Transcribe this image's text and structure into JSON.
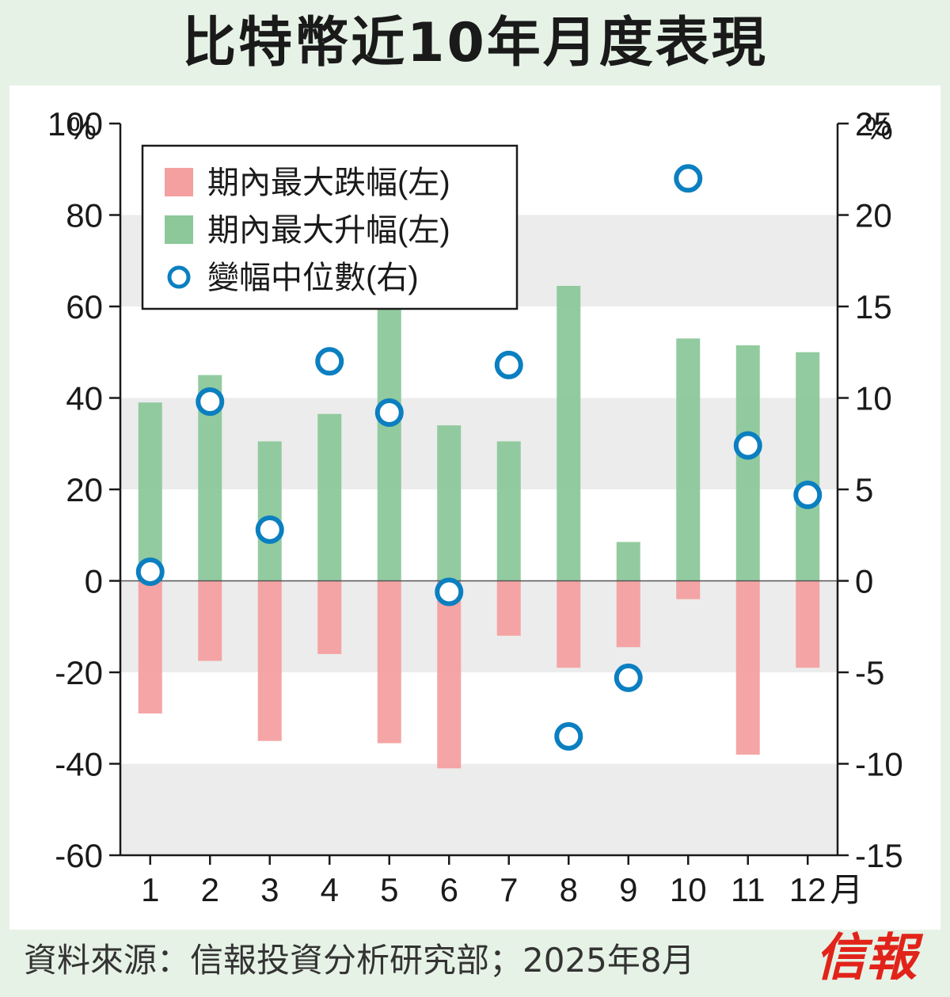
{
  "title": "比特幣近10年月度表現",
  "source": "資料來源：信報投資分析研究部；2025年8月",
  "logo": "信報",
  "colors": {
    "background": "#e6f2e6",
    "band": "#ececec",
    "drop": "#f4a0a0",
    "rise": "#8cc89a",
    "median_stroke": "#0b7fc0"
  },
  "chart_data": {
    "type": "bar",
    "categories": [
      "1",
      "2",
      "3",
      "4",
      "5",
      "6",
      "7",
      "8",
      "9",
      "10",
      "11",
      "12"
    ],
    "x_unit": "月",
    "y_left": {
      "unit": "%",
      "min": -60,
      "max": 100,
      "ticks": [
        100,
        80,
        60,
        40,
        20,
        0,
        -20,
        -40,
        -60
      ]
    },
    "y_right": {
      "unit": "%",
      "min": -15,
      "max": 25,
      "ticks": [
        25,
        20,
        15,
        10,
        5,
        0,
        -5,
        -10,
        -15
      ]
    },
    "series": [
      {
        "name": "期內最大跌幅(左)",
        "type": "bar",
        "axis": "left",
        "values": [
          -29,
          -17.5,
          -35,
          -16,
          -35.5,
          -41,
          -12,
          -19,
          -14.5,
          -4,
          -38,
          -19
        ]
      },
      {
        "name": "期內最大升幅(左)",
        "type": "bar",
        "axis": "left",
        "values": [
          39,
          45,
          30.5,
          36.5,
          69,
          34,
          30.5,
          64.5,
          8.5,
          53,
          51.5,
          50
        ]
      },
      {
        "name": "變幅中位數(右)",
        "type": "scatter",
        "axis": "right",
        "values": [
          0.5,
          9.8,
          2.8,
          12,
          9.2,
          -0.6,
          11.8,
          -8.5,
          -5.3,
          22,
          7.4,
          4.7
        ]
      }
    ],
    "grid": "alternating horizontal bands",
    "legend_position": "top-left"
  }
}
